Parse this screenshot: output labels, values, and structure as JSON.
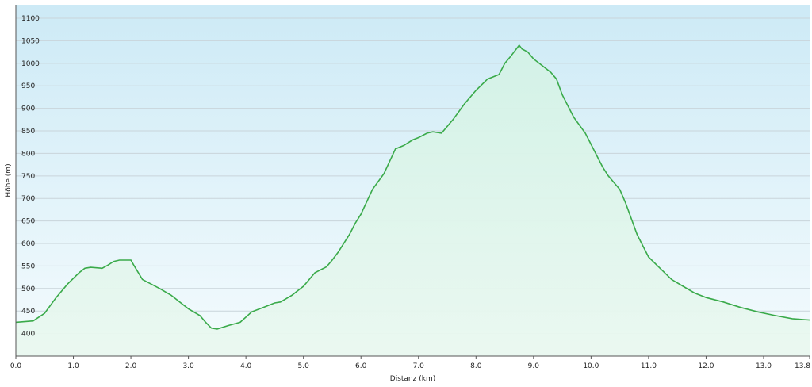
{
  "chart_data": {
    "type": "area",
    "title": "",
    "xlabel": "Distanz  (km)",
    "ylabel": "Höhe (m)",
    "xlim": [
      0,
      13.8
    ],
    "ylim": [
      350,
      1130
    ],
    "x_ticks": [
      "0.0",
      "1.0",
      "2.0",
      "3.0",
      "4.0",
      "5.0",
      "6.0",
      "7.0",
      "8.0",
      "9.0",
      "10.0",
      "11.0",
      "12.0",
      "13.0",
      "13.8"
    ],
    "x_tick_values": [
      0,
      1,
      2,
      3,
      4,
      5,
      6,
      7,
      8,
      9,
      10,
      11,
      12,
      13,
      13.8
    ],
    "y_ticks": [
      "400",
      "450",
      "500",
      "550",
      "600",
      "650",
      "700",
      "750",
      "800",
      "850",
      "900",
      "950",
      "1000",
      "1050",
      "1100"
    ],
    "y_tick_values": [
      400,
      450,
      500,
      550,
      600,
      650,
      700,
      750,
      800,
      850,
      900,
      950,
      1000,
      1050,
      1100
    ],
    "grid": true,
    "colors": {
      "line": "#3aaa4a",
      "fill": "#dff4ea",
      "bg_top": "#cdeaf6",
      "bg_bottom": "#f4fbfd",
      "grid": "#c9d4da"
    },
    "series": [
      {
        "x": [
          0,
          0.3,
          0.5,
          0.7,
          0.9,
          1.1,
          1.2,
          1.3,
          1.5,
          1.6,
          1.7,
          1.8,
          2.0,
          2.05,
          2.2,
          2.5,
          2.7,
          3.0,
          3.2,
          3.3,
          3.4,
          3.5,
          3.7,
          3.9,
          4.1,
          4.3,
          4.5,
          4.6,
          4.8,
          5.0,
          5.2,
          5.4,
          5.5,
          5.6,
          5.8,
          5.9,
          6.0,
          6.2,
          6.4,
          6.6,
          6.75,
          6.9,
          7.0,
          7.15,
          7.25,
          7.4,
          7.6,
          7.8,
          8.0,
          8.2,
          8.4,
          8.5,
          8.6,
          8.75,
          8.8,
          8.9,
          9.0,
          9.2,
          9.3,
          9.4,
          9.5,
          9.7,
          9.9,
          10.0,
          10.2,
          10.3,
          10.5,
          10.6,
          10.8,
          11.0,
          11.2,
          11.4,
          11.6,
          11.8,
          12.0,
          12.3,
          12.6,
          12.9,
          13.2,
          13.5,
          13.8
        ],
        "y": [
          425,
          428,
          445,
          480,
          510,
          535,
          545,
          547,
          545,
          552,
          560,
          563,
          563,
          552,
          520,
          500,
          485,
          455,
          440,
          425,
          412,
          410,
          418,
          425,
          448,
          458,
          468,
          470,
          485,
          505,
          535,
          548,
          563,
          580,
          620,
          645,
          665,
          720,
          755,
          810,
          818,
          830,
          835,
          845,
          848,
          845,
          875,
          910,
          940,
          965,
          975,
          1000,
          1015,
          1040,
          1032,
          1025,
          1010,
          990,
          980,
          965,
          930,
          880,
          845,
          820,
          770,
          750,
          720,
          690,
          620,
          570,
          545,
          520,
          505,
          490,
          480,
          470,
          458,
          448,
          440,
          433,
          430
        ]
      }
    ]
  }
}
